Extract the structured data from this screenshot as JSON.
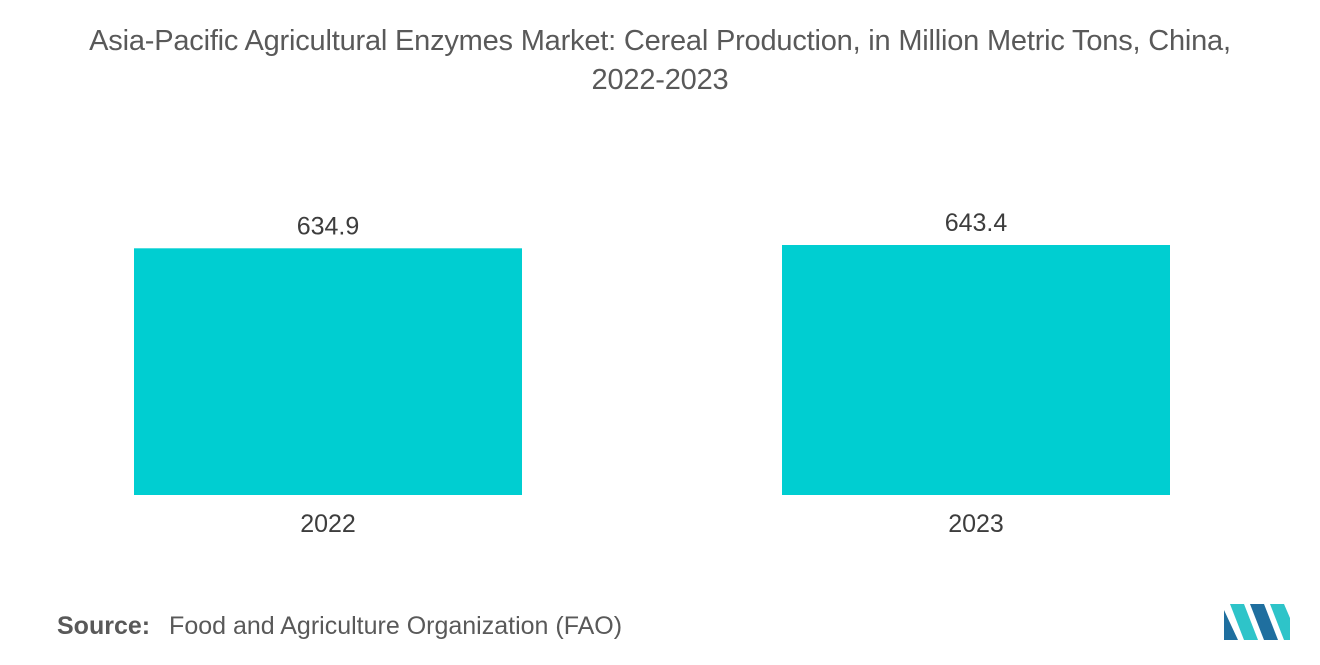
{
  "chart_data": {
    "type": "bar",
    "title_lines": [
      "Asia-Pacific Agricultural Enzymes Market: Cereal Production, in Million Metric Tons, China,",
      "2022-2023"
    ],
    "categories": [
      "2022",
      "2023"
    ],
    "values": [
      634.9,
      643.4
    ],
    "value_labels": [
      "634.9",
      "643.4"
    ],
    "bar_color": "#00CED1",
    "xlabel": "",
    "ylabel": "",
    "legend": "none",
    "grid": false
  },
  "source": {
    "label": "Source:",
    "text": "Food and Agriculture Organization (FAO)"
  },
  "logo": {
    "icon": "mordor-intelligence-logo",
    "colors": [
      "#1f6f9f",
      "#2ec4c9"
    ]
  }
}
